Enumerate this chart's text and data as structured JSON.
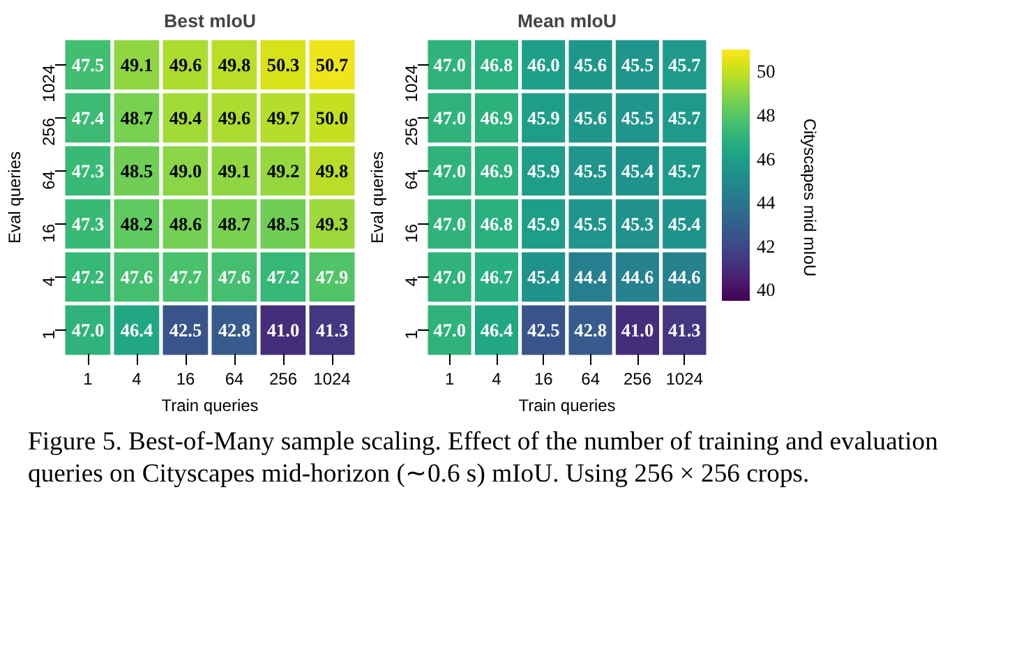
{
  "chart_data": [
    {
      "type": "heatmap",
      "title": "Best mIoU",
      "xlabel": "Train queries",
      "ylabel": "Eval queries",
      "categories": [
        "1",
        "4",
        "16",
        "64",
        "256",
        "1024"
      ],
      "y_categories": [
        "1024",
        "256",
        "64",
        "16",
        "4",
        "1"
      ],
      "cells": [
        [
          47.5,
          49.1,
          49.6,
          49.8,
          50.3,
          50.7
        ],
        [
          47.4,
          48.7,
          49.4,
          49.6,
          49.7,
          50.0
        ],
        [
          47.3,
          48.5,
          49.0,
          49.1,
          49.2,
          49.8
        ],
        [
          47.3,
          48.2,
          48.6,
          48.7,
          48.5,
          49.3
        ],
        [
          47.2,
          47.6,
          47.7,
          47.6,
          47.2,
          47.9
        ],
        [
          47.0,
          46.4,
          42.5,
          42.8,
          41.0,
          41.3
        ]
      ],
      "cell_labels": [
        [
          "47.5",
          "49.1",
          "49.6",
          "49.8",
          "50.3",
          "50.7"
        ],
        [
          "47.4",
          "48.7",
          "49.4",
          "49.6",
          "49.7",
          "50.0"
        ],
        [
          "47.3",
          "48.5",
          "49.0",
          "49.1",
          "49.2",
          "49.8"
        ],
        [
          "47.3",
          "48.2",
          "48.6",
          "48.7",
          "48.5",
          "49.3"
        ],
        [
          "47.2",
          "47.6",
          "47.7",
          "47.6",
          "47.2",
          "47.9"
        ],
        [
          "47.0",
          "46.4",
          "42.5",
          "42.8",
          "41.0",
          "41.3"
        ]
      ]
    },
    {
      "type": "heatmap",
      "title": "Mean mIoU",
      "xlabel": "Train queries",
      "ylabel": "Eval queries",
      "categories": [
        "1",
        "4",
        "16",
        "64",
        "256",
        "1024"
      ],
      "y_categories": [
        "1024",
        "256",
        "64",
        "16",
        "4",
        "1"
      ],
      "cells": [
        [
          47.0,
          46.8,
          46.0,
          45.6,
          45.5,
          45.7
        ],
        [
          47.0,
          46.9,
          45.9,
          45.6,
          45.5,
          45.7
        ],
        [
          47.0,
          46.9,
          45.9,
          45.5,
          45.4,
          45.7
        ],
        [
          47.0,
          46.8,
          45.9,
          45.5,
          45.3,
          45.4
        ],
        [
          47.0,
          46.7,
          45.4,
          44.4,
          44.6,
          44.6
        ],
        [
          47.0,
          46.4,
          42.5,
          42.8,
          41.0,
          41.3
        ]
      ],
      "cell_labels": [
        [
          "47.0",
          "46.8",
          "46.0",
          "45.6",
          "45.5",
          "45.7"
        ],
        [
          "47.0",
          "46.9",
          "45.9",
          "45.6",
          "45.5",
          "45.7"
        ],
        [
          "47.0",
          "46.9",
          "45.9",
          "45.5",
          "45.4",
          "45.7"
        ],
        [
          "47.0",
          "46.8",
          "45.9",
          "45.5",
          "45.3",
          "45.4"
        ],
        [
          "47.0",
          "46.7",
          "45.4",
          "44.4",
          "44.6",
          "44.6"
        ],
        [
          "47.0",
          "46.4",
          "42.5",
          "42.8",
          "41.0",
          "41.3"
        ]
      ],
      "clim": [
        39.5,
        51.0
      ],
      "cticks": [
        40,
        42,
        44,
        46,
        48,
        50
      ],
      "clabel": "Cityscapes mid mIoU",
      "annotations": [
        "Figure 5. Best-of-Many sample scaling. Effect of the number of training and evaluation queries on Cityscapes mid-horizon (∼0.6 s) mIoU. Using 256 × 256 crops."
      ]
    }
  ]
}
